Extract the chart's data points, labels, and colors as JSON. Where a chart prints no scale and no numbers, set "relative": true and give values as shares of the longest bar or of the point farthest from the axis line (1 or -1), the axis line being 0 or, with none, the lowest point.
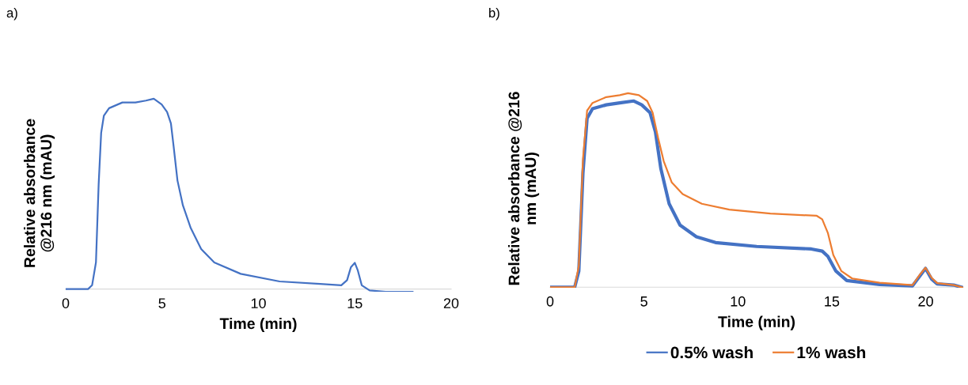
{
  "chart_data": [
    {
      "type": "line",
      "title": "a)",
      "xlabel": "Time (min)",
      "ylabel": "Relative absorbance\n@216 nm (mAU)",
      "relative": true,
      "xlim": [
        0,
        20
      ],
      "xticks": [
        0,
        5,
        10,
        15,
        20
      ],
      "grid": false,
      "legend": false,
      "series": [
        {
          "color": "#4472c4",
          "x": [
            0,
            1.16,
            1.37,
            1.57,
            1.71,
            1.84,
            1.98,
            2.25,
            2.94,
            3.62,
            4.16,
            4.57,
            4.98,
            5.26,
            5.46,
            5.6,
            5.8,
            6.08,
            6.49,
            7.03,
            7.71,
            9.08,
            11.1,
            13.2,
            14.3,
            14.6,
            14.8,
            15.0,
            15.15,
            15.36,
            15.77,
            16.6,
            18.0
          ],
          "values": [
            0,
            0,
            0.02,
            0.14,
            0.55,
            0.82,
            0.91,
            0.95,
            0.98,
            0.98,
            0.99,
            1.0,
            0.97,
            0.93,
            0.87,
            0.75,
            0.57,
            0.44,
            0.32,
            0.21,
            0.14,
            0.08,
            0.04,
            0.027,
            0.02,
            0.047,
            0.115,
            0.138,
            0.1,
            0.02,
            -0.007,
            -0.014,
            -0.014
          ]
        }
      ]
    },
    {
      "type": "line",
      "title": "b)",
      "xlabel": "Time (min)",
      "ylabel": "Relative absorbance @216\nnm (mAU)",
      "relative": true,
      "xlim": [
        0,
        22
      ],
      "xticks": [
        0,
        5,
        10,
        15,
        20
      ],
      "grid": false,
      "legend": "bottom",
      "series": [
        {
          "name": "0.5% wash",
          "color": "#4472c4",
          "x": [
            0,
            1.31,
            1.53,
            1.75,
            1.97,
            2.26,
            2.99,
            3.71,
            4.44,
            4.88,
            5.32,
            5.61,
            5.9,
            6.34,
            6.92,
            7.79,
            8.81,
            11.0,
            13.91,
            14.49,
            14.79,
            15.22,
            15.8,
            17.55,
            19.3,
            19.67,
            19.99,
            20.32,
            20.61,
            21.49,
            22
          ],
          "values": [
            0,
            0,
            0.083,
            0.59,
            0.87,
            0.92,
            0.94,
            0.95,
            0.96,
            0.94,
            0.9,
            0.8,
            0.61,
            0.43,
            0.32,
            0.26,
            0.23,
            0.21,
            0.197,
            0.186,
            0.159,
            0.083,
            0.034,
            0.014,
            0.007,
            0.055,
            0.097,
            0.041,
            0.017,
            0.011,
            -0.003
          ]
        },
        {
          "name": "1% wash",
          "color": "#ed7d31",
          "x": [
            0,
            1.31,
            1.53,
            1.75,
            1.97,
            2.26,
            2.99,
            3.71,
            4.15,
            4.73,
            5.17,
            5.46,
            5.75,
            6.05,
            6.48,
            7.06,
            8.08,
            9.54,
            11.73,
            14.2,
            14.49,
            14.79,
            15.08,
            15.51,
            16.1,
            17.55,
            19.3,
            19.67,
            19.99,
            20.32,
            20.61,
            21.49,
            22
          ],
          "values": [
            0,
            0,
            0.11,
            0.66,
            0.91,
            0.95,
            0.98,
            0.99,
            1.0,
            0.99,
            0.96,
            0.9,
            0.77,
            0.65,
            0.54,
            0.48,
            0.43,
            0.4,
            0.38,
            0.368,
            0.35,
            0.28,
            0.166,
            0.083,
            0.044,
            0.023,
            0.011,
            0.062,
            0.1,
            0.048,
            0.021,
            0.011,
            -0.003
          ]
        }
      ]
    }
  ]
}
